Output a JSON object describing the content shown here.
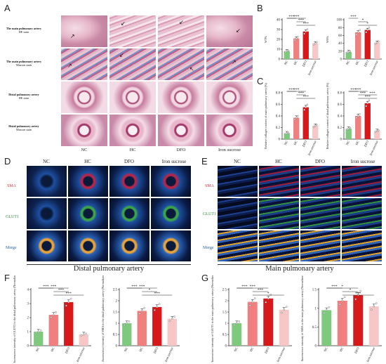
{
  "panels": {
    "A": {
      "letter": "A",
      "rows": [
        {
          "title": "The main pulmonary artery",
          "stain": "HE stain"
        },
        {
          "title": "The main pulmonary artery",
          "stain": "Masson stain"
        },
        {
          "title": "Distal pulmonary artery",
          "stain": "HE stain"
        },
        {
          "title": "Distal pulmonary artery",
          "stain": "Masson stain"
        }
      ],
      "columns": [
        "NC",
        "HC",
        "DFO",
        "Iron sucrose"
      ]
    },
    "B": {
      "letter": "B"
    },
    "C": {
      "letter": "C"
    },
    "D": {
      "letter": "D",
      "columns": [
        "NC",
        "HC",
        "DFO",
        "Iron sucrose"
      ],
      "channels": [
        "SMA",
        "GLUT1",
        "Merge"
      ],
      "caption": "Distal pulmonary artery"
    },
    "E": {
      "letter": "E",
      "columns": [
        "NC",
        "HC",
        "DFO",
        "Iron sucrose"
      ],
      "channels": [
        "SMA",
        "GLUT1",
        "Merge"
      ],
      "caption": "Main pulmonary artery"
    },
    "F": {
      "letter": "F"
    },
    "G": {
      "letter": "G"
    }
  },
  "colors": {
    "NC": "#7fc97f",
    "HC": "#f08080",
    "DFO": "#d7191c",
    "Iron sucrose": "#f7c6c6"
  },
  "chart_data": [
    {
      "id": "B1",
      "type": "bar",
      "ylabel": "WT%",
      "categories": [
        "NC",
        "HC",
        "DFO",
        "Iron sucrose"
      ],
      "values": [
        8,
        21,
        28,
        16
      ],
      "ylim": [
        0,
        40
      ],
      "ticks": [
        0,
        10,
        20,
        30,
        40
      ],
      "sig": [
        "***",
        "***",
        "***",
        "***"
      ]
    },
    {
      "id": "B2",
      "type": "bar",
      "ylabel": "WA%",
      "categories": [
        "NC",
        "HC",
        "DFO",
        "Iron sucrose"
      ],
      "values": [
        18,
        68,
        74,
        42
      ],
      "ylim": [
        0,
        100
      ],
      "ticks": [
        0,
        20,
        40,
        60,
        80,
        100
      ],
      "sig": [
        "***",
        "*",
        "*"
      ]
    },
    {
      "id": "C1",
      "type": "bar",
      "ylabel": "Relative collagen content of main pulmonary artery (%)",
      "categories": [
        "NC",
        "HC",
        "DFO",
        "Iron sucrose"
      ],
      "values": [
        0.1,
        0.37,
        0.55,
        0.23
      ],
      "ylim": [
        0,
        0.8
      ],
      "ticks": [
        0.0,
        0.2,
        0.4,
        0.6,
        0.8
      ],
      "sig": [
        "***",
        "***",
        "***",
        "***"
      ]
    },
    {
      "id": "C2",
      "type": "bar",
      "ylabel": "Relative collagen content of distal pulmonary artery (%)",
      "categories": [
        "NC",
        "HC",
        "DFO",
        "Iron sucrose"
      ],
      "values": [
        0.18,
        0.4,
        0.62,
        0.14
      ],
      "ylim": [
        0,
        0.8
      ],
      "ticks": [
        0.0,
        0.2,
        0.4,
        0.6,
        0.8
      ],
      "sig": [
        "***",
        "***",
        "***",
        "***",
        "***"
      ]
    },
    {
      "id": "F1",
      "type": "bar",
      "ylabel": "Mean fluorescence intensity of GLUT1 in the distal pulmonary artery (Normalized to NC)",
      "categories": [
        "NC",
        "HC",
        "DFO",
        "Iron sucrose"
      ],
      "values": [
        1.0,
        2.2,
        3.1,
        0.8
      ],
      "ylim": [
        0,
        4
      ],
      "ticks": [
        0,
        1,
        2,
        3,
        4
      ],
      "sig": [
        "***",
        "***",
        "***",
        "***"
      ]
    },
    {
      "id": "F2",
      "type": "bar",
      "ylabel": "Mean fluorescence intensity of SMA in the distal pulmonary artery (Normalized to NC)",
      "categories": [
        "NC",
        "HC",
        "DFO",
        "Iron sucrose"
      ],
      "values": [
        1.0,
        1.55,
        1.72,
        1.2
      ],
      "ylim": [
        0.0,
        2.5
      ],
      "ticks": [
        0.0,
        0.5,
        1.0,
        1.5,
        2.0,
        2.5
      ],
      "sig": [
        "***",
        "*",
        "***",
        "***"
      ]
    },
    {
      "id": "G1",
      "type": "bar",
      "ylabel": "Mean fluorescence intensity of GLUT1 in the main pulmonary artery (Normalized to NC)",
      "categories": [
        "NC",
        "HC",
        "DFO",
        "Iron sucrose"
      ],
      "values": [
        1.0,
        1.95,
        2.1,
        1.6
      ],
      "ylim": [
        0.0,
        2.5
      ],
      "ticks": [
        0.0,
        0.5,
        1.0,
        1.5,
        2.0,
        2.5
      ],
      "sig": [
        "***",
        "***",
        "*",
        "***"
      ]
    },
    {
      "id": "G2",
      "type": "bar",
      "ylabel": "Mean fluorescence intensity of SMA in the main pulmonary artery (Normalized to NC)",
      "categories": [
        "NC",
        "HC",
        "DFO",
        "Iron sucrose"
      ],
      "values": [
        0.95,
        1.2,
        1.35,
        1.05
      ],
      "ylim": [
        0.0,
        1.5
      ],
      "ticks": [
        0.0,
        0.5,
        1.0,
        1.5
      ],
      "sig": [
        "***",
        "*",
        "***",
        "*"
      ]
    }
  ]
}
